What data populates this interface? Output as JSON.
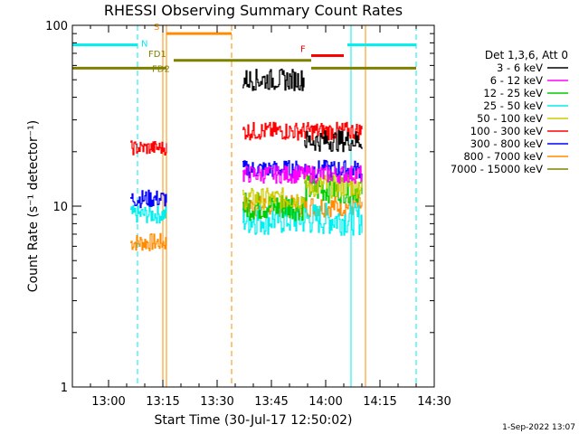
{
  "chart_data": {
    "type": "line",
    "title": "RHESSI Observing Summary Count Rates",
    "xlabel": "Start Time (30-Jul-17 12:50:02)",
    "ylabel": "Count Rate (s⁻¹ detector⁻¹)",
    "y_scale": "log",
    "ylim": [
      1,
      100
    ],
    "xlim": [
      "12:50",
      "14:30"
    ],
    "x_ticks": [
      "13:00",
      "13:15",
      "13:30",
      "13:45",
      "14:00",
      "14:15",
      "14:30"
    ],
    "y_ticks": [
      "1",
      "10",
      "100"
    ],
    "grid": false,
    "legend_position": "right",
    "legend_title": "Det 1,3,6, Att 0",
    "footer": "1-Sep-2022 13:07",
    "series": [
      {
        "name": "3 - 6 keV",
        "color": "#000000",
        "segments": [
          {
            "start": "13:37",
            "end": "13:54",
            "level": 50,
            "scatter": 0.06
          },
          {
            "start": "13:54",
            "end": "14:10",
            "level": 23,
            "scatter": 0.06
          }
        ]
      },
      {
        "name": "6 - 12 keV",
        "color": "#ff00ff",
        "segments": [
          {
            "start": "13:37",
            "end": "14:10",
            "level": 15,
            "scatter": 0.05
          }
        ]
      },
      {
        "name": "12 - 25 keV",
        "color": "#00cc00",
        "segments": [
          {
            "start": "13:37",
            "end": "13:54",
            "level": 10,
            "scatter": 0.08
          },
          {
            "start": "13:54",
            "end": "14:10",
            "level": 12.5,
            "scatter": 0.08
          }
        ]
      },
      {
        "name": "25 - 50 keV",
        "color": "#00eeee",
        "segments": [
          {
            "start": "13:06",
            "end": "13:16",
            "level": 9,
            "scatter": 0.05
          },
          {
            "start": "13:37",
            "end": "14:10",
            "level": 8.5,
            "scatter": 0.09
          }
        ]
      },
      {
        "name": "50 - 100 keV",
        "color": "#cccc00",
        "segments": [
          {
            "start": "13:37",
            "end": "13:54",
            "level": 11,
            "scatter": 0.06
          },
          {
            "start": "13:54",
            "end": "14:10",
            "level": 13,
            "scatter": 0.07
          }
        ]
      },
      {
        "name": "100 - 300 keV",
        "color": "#ff0000",
        "segments": [
          {
            "start": "13:06",
            "end": "13:16",
            "level": 21,
            "scatter": 0.04
          },
          {
            "start": "13:37",
            "end": "14:10",
            "level": 26,
            "scatter": 0.05
          }
        ]
      },
      {
        "name": "300 - 800 keV",
        "color": "#0000ff",
        "segments": [
          {
            "start": "13:06",
            "end": "13:16",
            "level": 11,
            "scatter": 0.05
          },
          {
            "start": "13:37",
            "end": "14:10",
            "level": 16,
            "scatter": 0.05
          }
        ]
      },
      {
        "name": "800 - 7000 keV",
        "color": "#ff8c00",
        "segments": [
          {
            "start": "13:06",
            "end": "13:16",
            "level": 6.3,
            "scatter": 0.05
          },
          {
            "start": "13:37",
            "end": "14:10",
            "level": 10,
            "scatter": 0.06
          }
        ]
      },
      {
        "name": "7000 - 15000 keV",
        "color": "#808000",
        "segments": []
      }
    ],
    "flag_bars": [
      {
        "label": "N",
        "color": "#00eeee",
        "level": 78,
        "segments": [
          [
            "12:50",
            "13:08"
          ],
          [
            "14:06",
            "14:25"
          ]
        ]
      },
      {
        "label": "S",
        "color": "#ff8c00",
        "level": 90,
        "segments": [
          [
            "13:16",
            "13:34"
          ]
        ]
      },
      {
        "label": "F",
        "color": "#ff0000",
        "level": 68,
        "segments": [
          [
            "13:56",
            "14:05"
          ]
        ]
      },
      {
        "label": "FD1",
        "color": "#808000",
        "level": 64,
        "segments": [
          [
            "13:18",
            "13:56"
          ]
        ]
      },
      {
        "label": "FD2",
        "color": "#808000",
        "level": 58,
        "segments": [
          [
            "12:50",
            "13:16"
          ],
          [
            "13:56",
            "14:25"
          ]
        ]
      }
    ],
    "vertical_markers": [
      {
        "time": "12:50",
        "color": "#00eeee",
        "style": "solid"
      },
      {
        "time": "13:08",
        "color": "#00eeee",
        "style": "dashed"
      },
      {
        "time": "13:15",
        "color": "#ff8c00",
        "style": "solid"
      },
      {
        "time": "13:16",
        "color": "#ff8c00",
        "style": "solid"
      },
      {
        "time": "13:34",
        "color": "#ff8c00",
        "style": "dashed"
      },
      {
        "time": "14:07",
        "color": "#00eeee",
        "style": "solid"
      },
      {
        "time": "14:11",
        "color": "#ff8c00",
        "style": "solid"
      },
      {
        "time": "14:25",
        "color": "#00eeee",
        "style": "dashed"
      }
    ]
  }
}
